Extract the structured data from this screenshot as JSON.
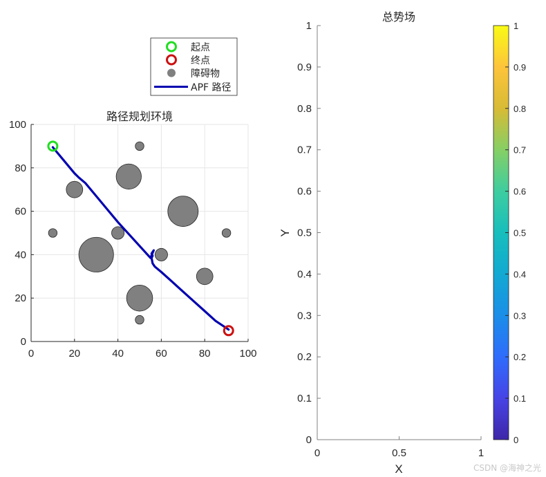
{
  "chart_data": [
    {
      "type": "scatter",
      "title": "路径规划环境",
      "xlabel": "",
      "ylabel": "",
      "xlim": [
        0,
        100
      ],
      "ylim": [
        0,
        100
      ],
      "xticks": [
        "0",
        "20",
        "40",
        "60",
        "80",
        "100"
      ],
      "yticks": [
        "0",
        "20",
        "40",
        "60",
        "80",
        "100"
      ],
      "grid": true,
      "aspect": "equal",
      "legend": {
        "position": "outside-top-right",
        "entries": [
          {
            "label": "起点",
            "marker": "circle-open",
            "color": "#22dd22"
          },
          {
            "label": "终点",
            "marker": "circle-open",
            "color": "#cc1111"
          },
          {
            "label": "障碍物",
            "marker": "circle-filled",
            "color": "#808080"
          },
          {
            "label": "APF 路径",
            "marker": "line",
            "color": "#0000b0"
          }
        ]
      },
      "start": {
        "x": 10,
        "y": 90,
        "color": "#22dd22"
      },
      "goal": {
        "x": 91,
        "y": 5,
        "color": "#cc1111"
      },
      "obstacles": [
        {
          "x": 20,
          "y": 70,
          "r": 3.8
        },
        {
          "x": 30,
          "y": 40,
          "r": 8
        },
        {
          "x": 40,
          "y": 50,
          "r": 2.9
        },
        {
          "x": 45,
          "y": 76,
          "r": 5.8
        },
        {
          "x": 50,
          "y": 90,
          "r": 2
        },
        {
          "x": 50,
          "y": 20,
          "r": 6
        },
        {
          "x": 50,
          "y": 10,
          "r": 2
        },
        {
          "x": 60,
          "y": 40,
          "r": 2.9
        },
        {
          "x": 70,
          "y": 60,
          "r": 7
        },
        {
          "x": 80,
          "y": 30,
          "r": 3.8
        },
        {
          "x": 90,
          "y": 50,
          "r": 2
        },
        {
          "x": 10,
          "y": 50,
          "r": 2
        }
      ],
      "path": {
        "name": "APF 路径",
        "color": "#0000b0",
        "x": [
          10,
          15,
          20,
          22,
          25,
          30,
          35,
          40,
          45,
          50,
          55,
          56.5,
          55.5,
          56,
          55.5,
          56,
          57,
          60,
          65,
          70,
          75,
          80,
          85,
          91
        ],
        "y": [
          89.5,
          83.5,
          77.5,
          75.5,
          73,
          67,
          61,
          55,
          49.5,
          44,
          38.5,
          42,
          40.5,
          39.5,
          38.5,
          36,
          34.5,
          32,
          27.5,
          23,
          18.5,
          14,
          9.5,
          5.5
        ]
      }
    },
    {
      "type": "heatmap",
      "title": "总势场",
      "xlabel": "X",
      "ylabel": "Y",
      "xlim": [
        0,
        1
      ],
      "ylim": [
        0,
        1
      ],
      "xticks": [
        "0",
        "0.5",
        "1"
      ],
      "yticks": [
        "0",
        "0.1",
        "0.2",
        "0.3",
        "0.4",
        "0.5",
        "0.6",
        "0.7",
        "0.8",
        "0.9",
        "1"
      ],
      "values": [],
      "colorbar": {
        "colormap": "parula",
        "range": [
          0,
          1
        ],
        "ticks": [
          "0",
          "0.1",
          "0.2",
          "0.3",
          "0.4",
          "0.5",
          "0.6",
          "0.7",
          "0.8",
          "0.9",
          "1"
        ],
        "colors": [
          "#3e26a8",
          "#4744e6",
          "#2f6cfc",
          "#1b8ee8",
          "#12a9d2",
          "#17bebc",
          "#3ecda0",
          "#86cf65",
          "#d8bb35",
          "#fdc43b",
          "#f9fb15"
        ]
      }
    }
  ],
  "watermark": "CSDN @海神之光"
}
